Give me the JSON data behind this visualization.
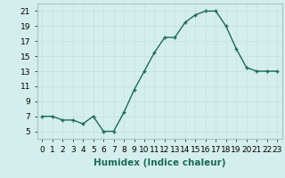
{
  "x": [
    0,
    1,
    2,
    3,
    4,
    5,
    6,
    7,
    8,
    9,
    10,
    11,
    12,
    13,
    14,
    15,
    16,
    17,
    18,
    19,
    20,
    21,
    22,
    23
  ],
  "y": [
    7.0,
    7.0,
    6.5,
    6.5,
    6.0,
    7.0,
    5.0,
    5.0,
    7.5,
    10.5,
    13.0,
    15.5,
    17.5,
    17.5,
    19.5,
    20.5,
    21.0,
    21.0,
    19.0,
    16.0,
    13.5,
    13.0,
    13.0,
    13.0
  ],
  "xlabel": "Humidex (Indice chaleur)",
  "ylim": [
    4,
    22
  ],
  "xlim": [
    -0.5,
    23.5
  ],
  "yticks": [
    5,
    7,
    9,
    11,
    13,
    15,
    17,
    19,
    21
  ],
  "xticks": [
    0,
    1,
    2,
    3,
    4,
    5,
    6,
    7,
    8,
    9,
    10,
    11,
    12,
    13,
    14,
    15,
    16,
    17,
    18,
    19,
    20,
    21,
    22,
    23
  ],
  "xtick_labels": [
    "0",
    "1",
    "2",
    "3",
    "4",
    "5",
    "6",
    "7",
    "8",
    "9",
    "10",
    "11",
    "12",
    "13",
    "14",
    "15",
    "16",
    "17",
    "18",
    "19",
    "20",
    "21",
    "22",
    "23"
  ],
  "line_color": "#1a6b5a",
  "marker": "+",
  "bg_color": "#d4eeec",
  "grid_color": "#c8e4e0",
  "tick_label_fontsize": 6.5,
  "xlabel_fontsize": 7.5,
  "xlabel_fontweight": "bold",
  "linewidth": 1.0,
  "markersize": 3.5,
  "markeredgewidth": 1.0
}
